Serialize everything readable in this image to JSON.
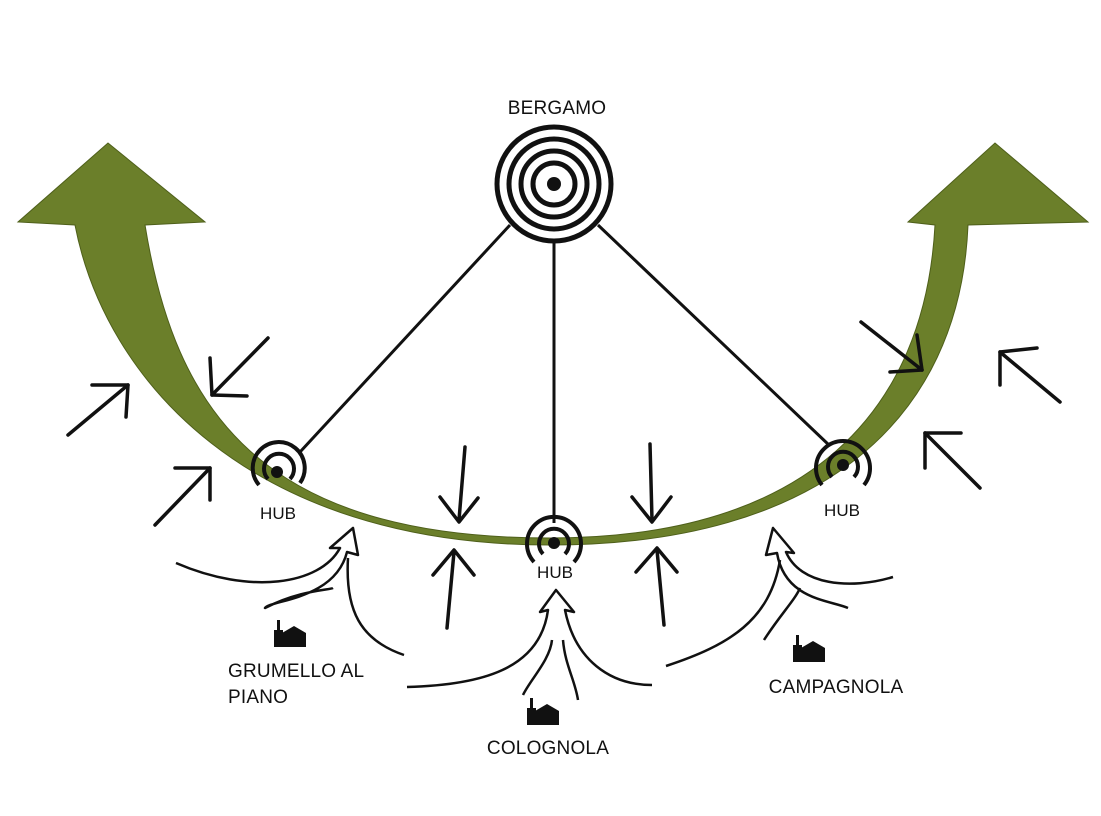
{
  "colors": {
    "green_arc": "#6b7f2a",
    "green_outline": "#4e5f1a",
    "ink": "#111111",
    "background": "#ffffff"
  },
  "center": {
    "label": "BERGAMO",
    "icon": "concentric-target-icon"
  },
  "hubs": [
    {
      "label": "HUB",
      "icon": "hub-signal-icon"
    },
    {
      "label": "HUB",
      "icon": "hub-signal-icon"
    },
    {
      "label": "HUB",
      "icon": "hub-signal-icon"
    }
  ],
  "towns": [
    {
      "name_line1": "GRUMELLO AL",
      "name_line2": "PIANO",
      "icon": "church-icon"
    },
    {
      "name_line1": "COLOGNOLA",
      "name_line2": "",
      "icon": "church-icon"
    },
    {
      "name_line1": "CAMPAGNOLA",
      "name_line2": "",
      "icon": "church-icon"
    }
  ]
}
